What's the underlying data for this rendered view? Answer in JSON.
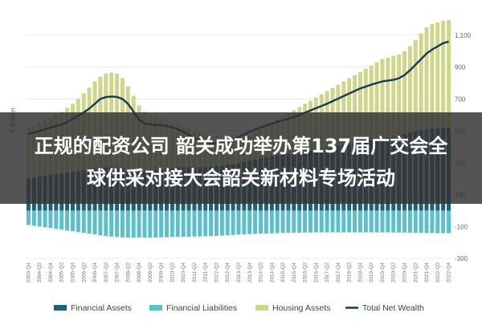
{
  "overlay": {
    "line1": "正规的配资公司 韶关成功举办第137届广交会全",
    "line2": "球供采对接大会韶关新材料专场活动"
  },
  "colors": {
    "financial_assets": "#1f5f7a",
    "financial_liabilities": "#5bc0cc",
    "housing_assets": "#cfd68a",
    "net_wealth": "#123b54",
    "overlay": "#333333"
  },
  "chart_data": {
    "type": "bar",
    "ylabel": "€ Billion",
    "ylim": [
      -300,
      1200
    ],
    "yticks": [
      -300,
      -100,
      100,
      300,
      500,
      700,
      900,
      1100
    ],
    "ytick_labels": [
      "-300",
      "-100",
      "100",
      "300",
      "500",
      "700",
      "900",
      "1,100"
    ],
    "categories": [
      "2003-Q4",
      "2004-Q1",
      "2004-Q2",
      "2004-Q3",
      "2004-Q4",
      "2005-Q1",
      "2005-Q2",
      "2005-Q3",
      "2005-Q4",
      "2006-Q1",
      "2006-Q2",
      "2006-Q3",
      "2006-Q4",
      "2007-Q1",
      "2007-Q2",
      "2007-Q3",
      "2007-Q4",
      "2008-Q1",
      "2008-Q2",
      "2008-Q3",
      "2008-Q4",
      "2009-Q1",
      "2009-Q2",
      "2009-Q3",
      "2009-Q4",
      "2010-Q1",
      "2010-Q2",
      "2010-Q3",
      "2010-Q4",
      "2011-Q1",
      "2011-Q2",
      "2011-Q3",
      "2011-Q4",
      "2012-Q1",
      "2012-Q2",
      "2012-Q3",
      "2012-Q4",
      "2013-Q1",
      "2013-Q2",
      "2013-Q3",
      "2013-Q4",
      "2014-Q1",
      "2014-Q2",
      "2014-Q3",
      "2014-Q4",
      "2015-Q1",
      "2015-Q2",
      "2015-Q3",
      "2015-Q4",
      "2016-Q1",
      "2016-Q2",
      "2016-Q3",
      "2016-Q4",
      "2017-Q1",
      "2017-Q2",
      "2017-Q3",
      "2017-Q4",
      "2018-Q1",
      "2018-Q2",
      "2018-Q3",
      "2018-Q4",
      "2019-Q1",
      "2019-Q2",
      "2019-Q3",
      "2019-Q4",
      "2020-Q1",
      "2020-Q2",
      "2020-Q3",
      "2020-Q4",
      "2021-Q1",
      "2021-Q2",
      "2021-Q3",
      "2021-Q4",
      "2022-Q1",
      "2022-Q2",
      "2022-Q3",
      "2022-Q4"
    ],
    "xtick_labels": [
      "2003-Q4",
      "2004-Q2",
      "2004-Q4",
      "2005-Q2",
      "2005-Q4",
      "2006-Q2",
      "2006-Q4",
      "2007-Q2",
      "2007-Q4",
      "2008-Q2",
      "2008-Q4",
      "2009-Q2",
      "2009-Q4",
      "2010-Q2",
      "2010-Q4",
      "2011-Q2",
      "2011-Q4",
      "2012-Q2",
      "2012-Q4",
      "2013-Q2",
      "2013-Q4",
      "2014-Q2",
      "2014-Q4",
      "2015-Q2",
      "2015-Q4",
      "2016-Q2",
      "2016-Q4",
      "2017-Q2",
      "2017-Q4",
      "2018-Q2",
      "2018-Q4",
      "2019-Q2",
      "2019-Q4",
      "2020-Q2",
      "2020-Q4",
      "2021-Q2",
      "2021-Q4",
      "2022-Q2",
      "2022-Q4"
    ],
    "series": [
      {
        "name": "Financial Assets",
        "type": "bar",
        "values": [
          200,
          206,
          212,
          218,
          223,
          228,
          233,
          238,
          243,
          248,
          253,
          258,
          262,
          266,
          270,
          272,
          272,
          266,
          258,
          250,
          244,
          246,
          250,
          254,
          258,
          262,
          266,
          270,
          272,
          272,
          270,
          270,
          272,
          274,
          278,
          282,
          286,
          290,
          296,
          304,
          312,
          320,
          328,
          334,
          340,
          346,
          350,
          354,
          358,
          362,
          368,
          374,
          380,
          386,
          392,
          398,
          404,
          410,
          416,
          422,
          428,
          434,
          440,
          446,
          450,
          454,
          460,
          470,
          480,
          490,
          500,
          505,
          510,
          515,
          515,
          515,
          520
        ]
      },
      {
        "name": "Financial Liabilities",
        "type": "bar",
        "values": [
          -90,
          -95,
          -100,
          -105,
          -110,
          -115,
          -120,
          -125,
          -130,
          -135,
          -140,
          -145,
          -150,
          -155,
          -160,
          -163,
          -166,
          -168,
          -170,
          -170,
          -170,
          -170,
          -170,
          -170,
          -168,
          -167,
          -166,
          -165,
          -165,
          -164,
          -163,
          -162,
          -161,
          -160,
          -159,
          -157,
          -155,
          -153,
          -151,
          -149,
          -147,
          -146,
          -145,
          -144,
          -143,
          -142,
          -141,
          -140,
          -139,
          -139,
          -138,
          -138,
          -137,
          -137,
          -137,
          -137,
          -137,
          -137,
          -137,
          -137,
          -137,
          -137,
          -137,
          -137,
          -137,
          -137,
          -137,
          -138,
          -138,
          -139,
          -140,
          -140,
          -141,
          -141,
          -142,
          -142,
          -142
        ]
      },
      {
        "name": "Housing Assets",
        "type": "bar",
        "values": [
          520,
          535,
          550,
          565,
          580,
          600,
          620,
          645,
          670,
          700,
          735,
          770,
          810,
          840,
          860,
          865,
          860,
          830,
          780,
          720,
          660,
          620,
          600,
          590,
          580,
          570,
          560,
          545,
          530,
          515,
          500,
          490,
          480,
          472,
          466,
          462,
          458,
          456,
          456,
          460,
          470,
          490,
          510,
          530,
          550,
          570,
          590,
          610,
          630,
          650,
          670,
          690,
          710,
          730,
          750,
          770,
          790,
          810,
          830,
          850,
          870,
          890,
          910,
          930,
          950,
          960,
          970,
          980,
          1000,
          1030,
          1070,
          1110,
          1150,
          1170,
          1180,
          1190,
          1195
        ]
      },
      {
        "name": "Total Net Wealth",
        "type": "line",
        "values": [
          480,
          490,
          500,
          510,
          520,
          530,
          540,
          555,
          575,
          595,
          615,
          640,
          670,
          700,
          712,
          715,
          713,
          700,
          670,
          620,
          570,
          545,
          540,
          538,
          535,
          530,
          522,
          510,
          495,
          475,
          455,
          440,
          425,
          420,
          423,
          428,
          435,
          446,
          462,
          478,
          494,
          508,
          522,
          534,
          544,
          556,
          566,
          576,
          586,
          600,
          614,
          628,
          642,
          656,
          670,
          686,
          702,
          718,
          734,
          750,
          766,
          778,
          790,
          800,
          810,
          815,
          820,
          830,
          850,
          880,
          915,
          950,
          985,
          1010,
          1030,
          1050,
          1060
        ]
      }
    ],
    "legend_position": "bottom",
    "grid": true
  }
}
